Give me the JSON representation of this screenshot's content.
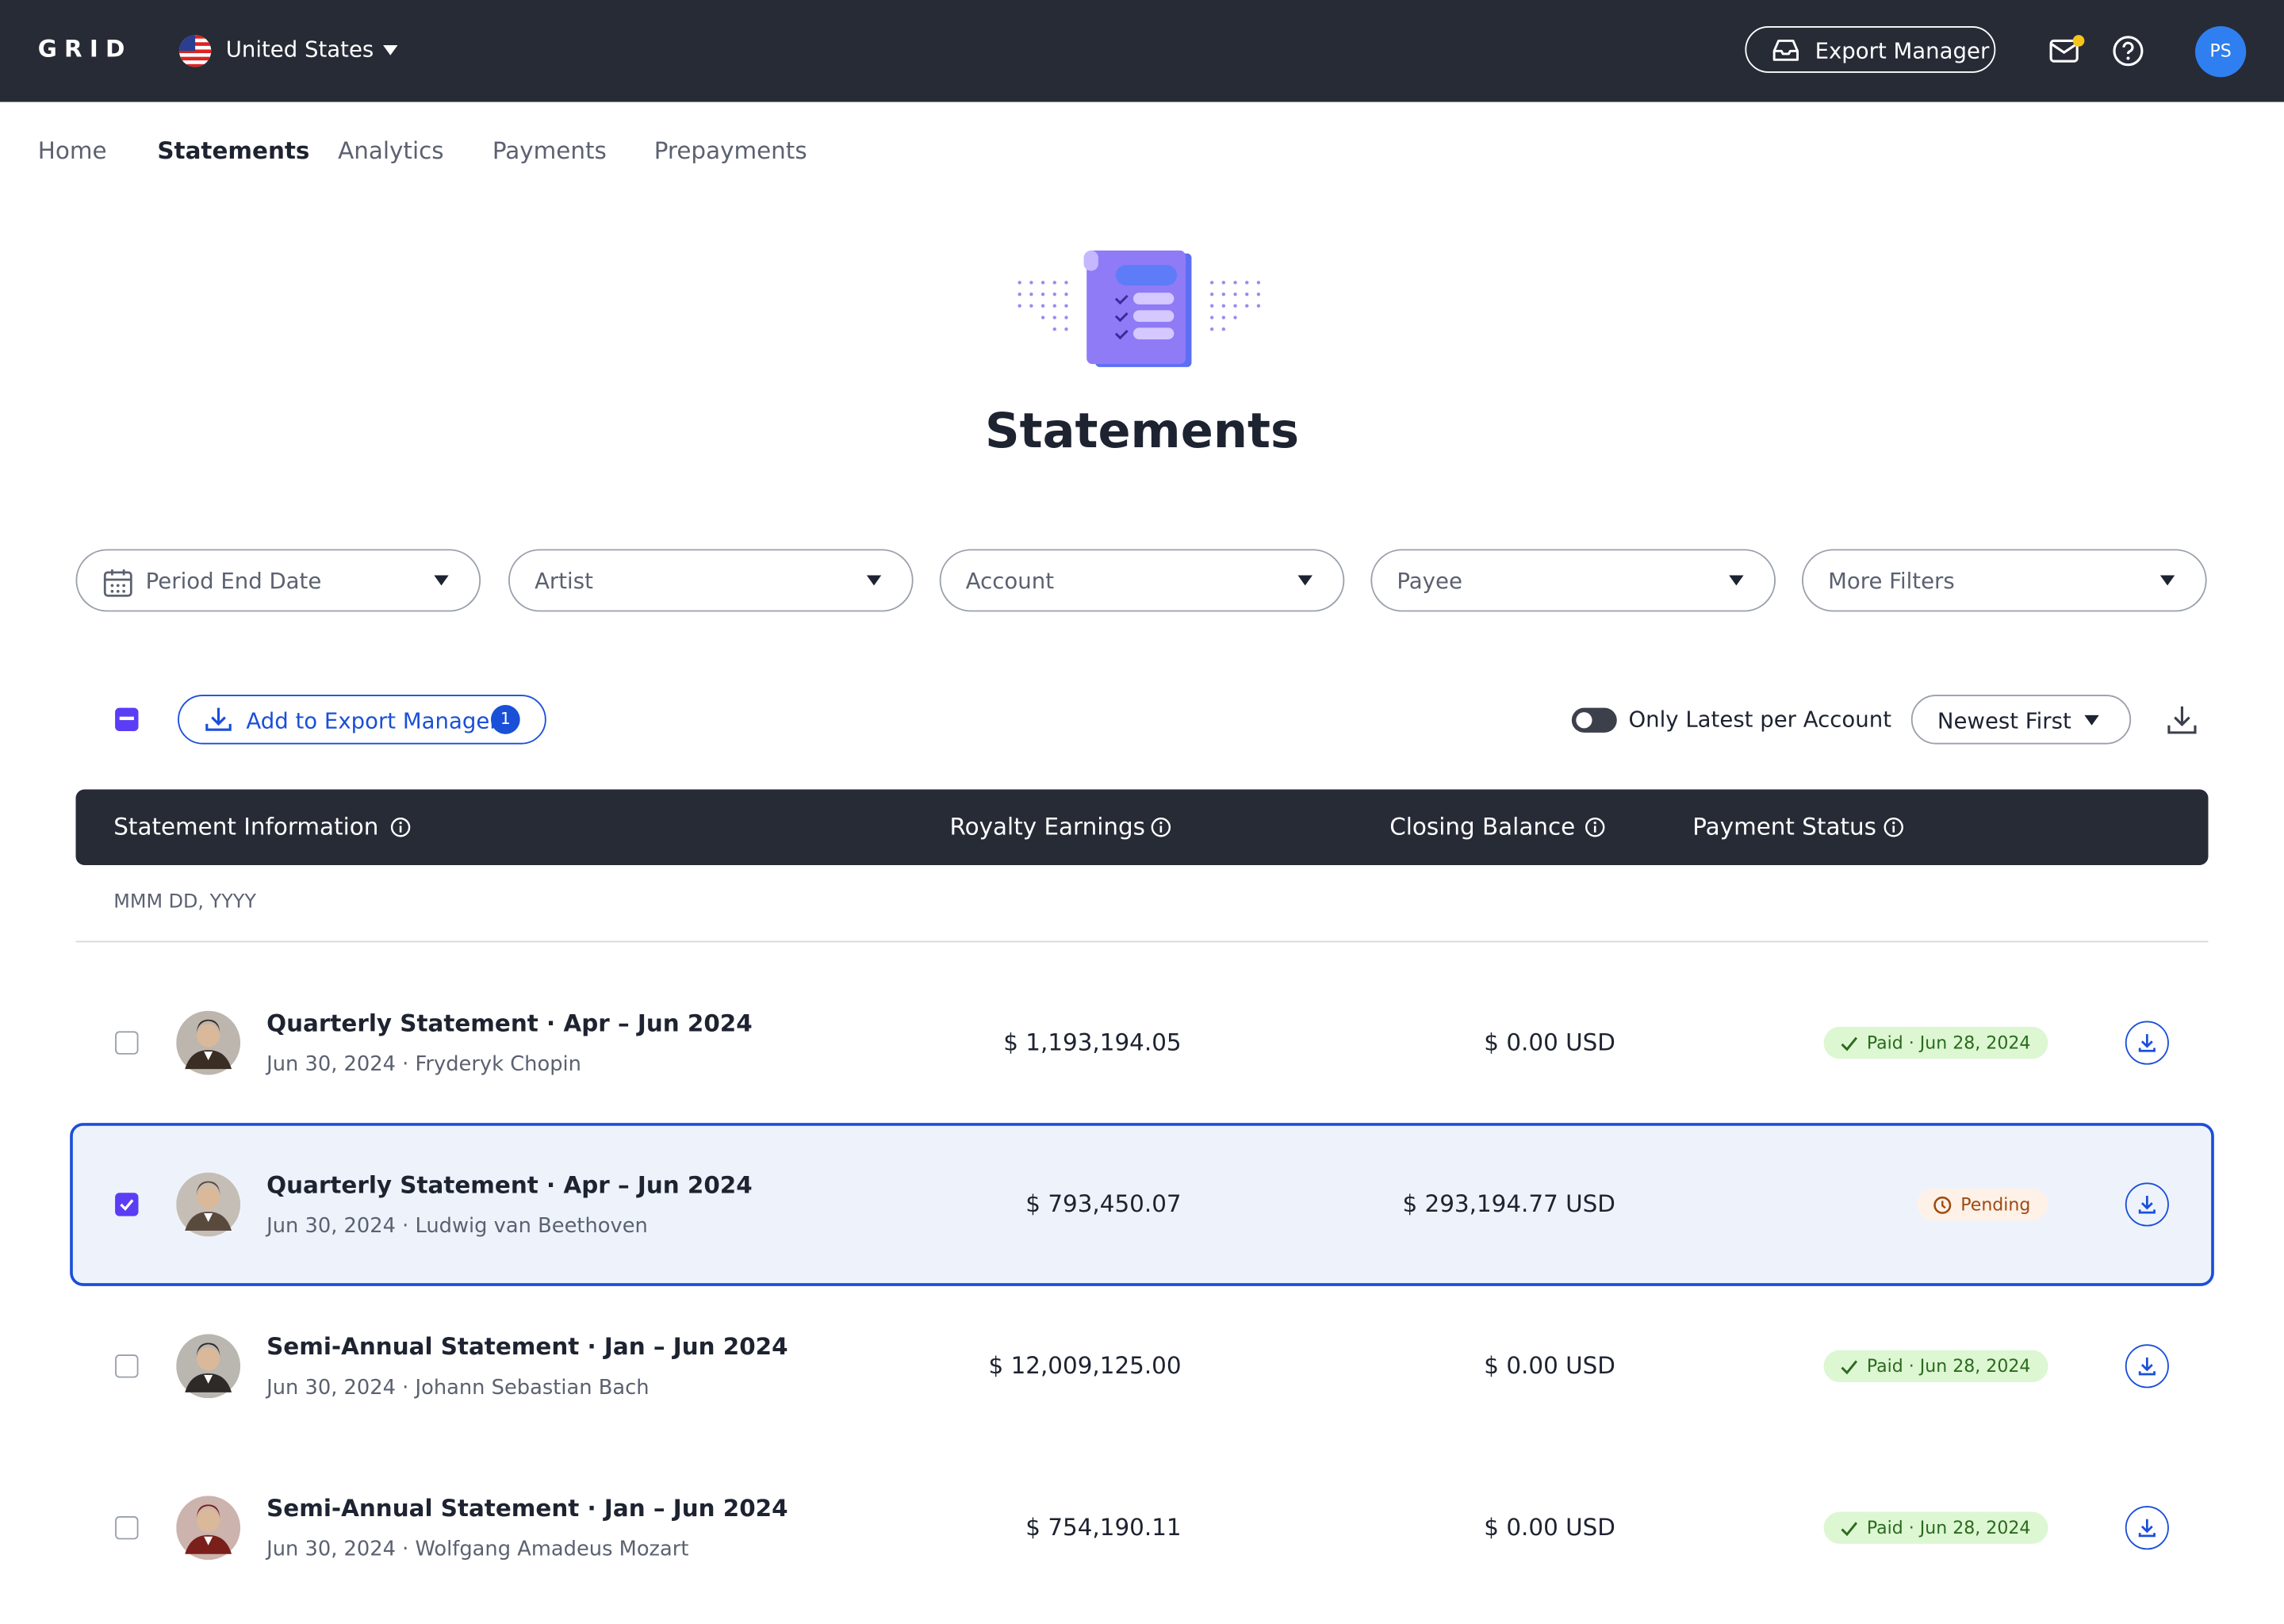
{
  "header": {
    "logo": "GRID",
    "country": "United States",
    "export_button": "Export Manager",
    "avatar": "PS"
  },
  "nav": {
    "items": [
      "Home",
      "Statements",
      "Analytics",
      "Payments",
      "Prepayments"
    ],
    "active": 1
  },
  "page": {
    "title": "Statements"
  },
  "filters": [
    "Period End Date",
    "Artist",
    "Account",
    "Payee",
    "More Filters"
  ],
  "toolbar": {
    "add_button": "Add to Export Manager",
    "add_count": 1,
    "toggle_label": "Only Latest per Account",
    "sort": "Newest First"
  },
  "table": {
    "columns": [
      "Statement Information",
      "Royalty Earnings",
      "Closing Balance",
      "Payment Status"
    ],
    "date_format": "MMM DD, YYYY",
    "rows": [
      {
        "title": "Quarterly Statement · Apr – Jun 2024",
        "subtitle": "Jun 30, 2024 · Fryderyk Chopin",
        "royalty": "$ 1,193,194.05",
        "balance": "$ 0.00 USD",
        "status": "Paid · Jun 28, 2024",
        "paid": true,
        "selected": false
      },
      {
        "title": "Quarterly Statement · Apr – Jun 2024",
        "subtitle": "Jun 30, 2024 · Ludwig van Beethoven",
        "royalty": "$ 793,450.07",
        "balance": "$ 293,194.77 USD",
        "status": "Pending",
        "paid": false,
        "selected": true
      },
      {
        "title": "Semi-Annual Statement · Jan – Jun 2024",
        "subtitle": "Jun 30, 2024 · Johann Sebastian Bach",
        "royalty": "$ 12,009,125.00",
        "balance": "$ 0.00 USD",
        "status": "Paid · Jun 28, 2024",
        "paid": true,
        "selected": false
      },
      {
        "title": "Semi-Annual Statement · Jan – Jun 2024",
        "subtitle": "Jun 30, 2024 · Wolfgang Amadeus Mozart",
        "royalty": "$ 754,190.11",
        "balance": "$ 0.00 USD",
        "status": "Paid · Jun 28, 2024",
        "paid": true,
        "selected": false
      }
    ]
  }
}
